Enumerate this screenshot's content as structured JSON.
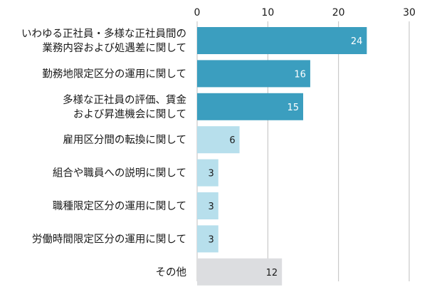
{
  "chart_data": {
    "type": "bar",
    "orientation": "horizontal",
    "categories": [
      [
        "いわゆる正社員・多様な正社員間の",
        "業務内容および処遇差に関して"
      ],
      [
        "勤務地限定区分の運用に関して"
      ],
      [
        "多様な正社員の評価、賃金",
        "および昇進機会に関して"
      ],
      [
        "雇用区分間の転換に関して"
      ],
      [
        "組合や職員への説明に関して"
      ],
      [
        "職種限定区分の運用に関して"
      ],
      [
        "労働時間限定区分の運用に関して"
      ],
      [
        "その他"
      ]
    ],
    "values": [
      24,
      16,
      15,
      6,
      3,
      3,
      3,
      12
    ],
    "bar_colors": [
      "#3b9ebf",
      "#3b9ebf",
      "#3b9ebf",
      "#b7dfec",
      "#b7dfec",
      "#b7dfec",
      "#b7dfec",
      "#dcdde0"
    ],
    "label_colors": [
      "#ffffff",
      "#ffffff",
      "#ffffff",
      "#1a1a1a",
      "#1a1a1a",
      "#1a1a1a",
      "#1a1a1a",
      "#1a1a1a"
    ],
    "xaxis_position": "top",
    "xlim": [
      0,
      30
    ],
    "xticks": [
      0,
      10,
      20,
      30
    ],
    "grid": true,
    "gridline_color": "#bfbfbf",
    "title": "",
    "xlabel": "",
    "ylabel": ""
  }
}
